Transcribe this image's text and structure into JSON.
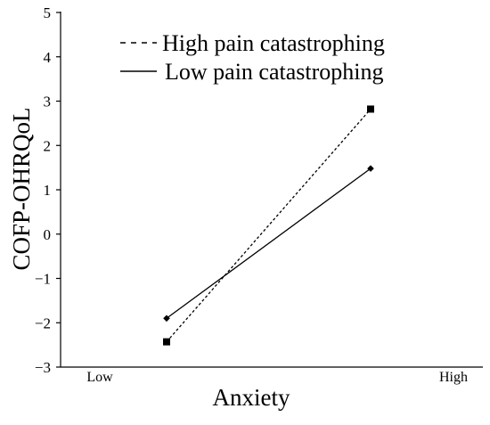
{
  "chart_data": {
    "type": "line",
    "title": "",
    "xlabel": "Anxiety",
    "ylabel": "COFP-OHRQoL",
    "categories": [
      "Low",
      "High"
    ],
    "ylim": [
      -3,
      5
    ],
    "yticks": [
      "5",
      "4",
      "3",
      "2",
      "1",
      "0",
      "−1",
      "−2",
      "−3"
    ],
    "grid": false,
    "legend_position": "top-left",
    "series": [
      {
        "name": "High pain catastrophing",
        "line_style": "dashed",
        "marker": "square",
        "color": "#000000",
        "points": [
          {
            "category": "Low",
            "y": -2.43
          },
          {
            "category": "High",
            "y": 2.82
          }
        ]
      },
      {
        "name": "Low pain catastrophing",
        "line_style": "solid",
        "marker": "diamond",
        "color": "#000000",
        "points": [
          {
            "category": "Low",
            "y": -1.9
          },
          {
            "category": "High",
            "y": 1.48
          }
        ]
      }
    ]
  }
}
